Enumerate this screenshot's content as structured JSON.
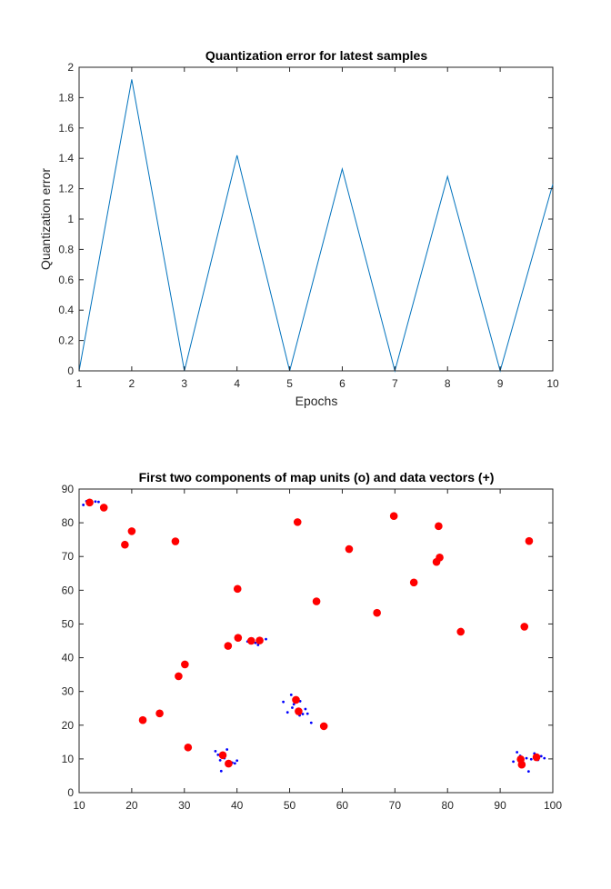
{
  "chart_data": [
    {
      "type": "line",
      "title": "Quantization error for latest samples",
      "xlabel": "Epochs",
      "ylabel": "Quantization error",
      "xlim": [
        1,
        10
      ],
      "ylim": [
        0,
        2
      ],
      "xticks": [
        1,
        2,
        3,
        4,
        5,
        6,
        7,
        8,
        9,
        10
      ],
      "yticks": [
        0,
        0.2,
        0.4,
        0.6,
        0.8,
        1,
        1.2,
        1.4,
        1.6,
        1.8,
        2
      ],
      "grid": false,
      "line_color": "#0072BD",
      "series": [
        {
          "x": [
            1,
            2,
            3,
            4,
            5,
            6,
            7,
            8,
            9,
            10
          ],
          "y": [
            0,
            1.92,
            0,
            1.42,
            0,
            1.33,
            0,
            1.28,
            0,
            1.23
          ]
        }
      ]
    },
    {
      "type": "scatter",
      "title": "First two components of map units (o) and data vectors (+)",
      "xlabel": "",
      "ylabel": "",
      "xlim": [
        10,
        100
      ],
      "ylim": [
        0,
        90
      ],
      "xticks": [
        10,
        20,
        30,
        40,
        50,
        60,
        70,
        80,
        90,
        100
      ],
      "yticks": [
        0,
        10,
        20,
        30,
        40,
        50,
        60,
        70,
        80,
        90
      ],
      "grid": false,
      "map_unit_color": "#FF0000",
      "data_vector_color": "#0000FF",
      "map_units": [
        [
          12,
          86
        ],
        [
          14.7,
          84.5
        ],
        [
          20,
          77.5
        ],
        [
          18.7,
          73.5
        ],
        [
          28.3,
          74.5
        ],
        [
          51.5,
          80.2
        ],
        [
          61.3,
          72.2
        ],
        [
          69.8,
          82
        ],
        [
          78.3,
          79
        ],
        [
          78.5,
          69.7
        ],
        [
          77.9,
          68.4
        ],
        [
          95.5,
          74.6
        ],
        [
          40.1,
          60.4
        ],
        [
          55.1,
          56.7
        ],
        [
          66.6,
          53.3
        ],
        [
          73.6,
          62.3
        ],
        [
          82.5,
          47.7
        ],
        [
          94.6,
          49.2
        ],
        [
          38.3,
          43.5
        ],
        [
          40.2,
          45.9
        ],
        [
          42.7,
          45
        ],
        [
          44.3,
          45.1
        ],
        [
          30.1,
          38
        ],
        [
          28.9,
          34.5
        ],
        [
          51.2,
          27.5
        ],
        [
          51.7,
          24.1
        ],
        [
          56.5,
          19.7
        ],
        [
          25.3,
          23.5
        ],
        [
          22.1,
          21.5
        ],
        [
          30.7,
          13.4
        ],
        [
          37.3,
          11.1
        ],
        [
          38.4,
          8.6
        ],
        [
          93.9,
          9.9
        ],
        [
          94.1,
          8.3
        ],
        [
          96.9,
          10.5
        ]
      ],
      "data_vectors": [
        [
          10.8,
          85.3
        ],
        [
          11.4,
          86.4
        ],
        [
          12.3,
          85.7
        ],
        [
          13.1,
          86.3
        ],
        [
          13.7,
          86.2
        ],
        [
          14.8,
          84
        ],
        [
          15,
          85
        ],
        [
          42,
          44.8
        ],
        [
          43.5,
          44.4
        ],
        [
          44.5,
          45.2
        ],
        [
          45.5,
          45.5
        ],
        [
          43,
          45.6
        ],
        [
          44,
          43.8
        ],
        [
          48.8,
          26.9
        ],
        [
          49.6,
          23.8
        ],
        [
          50.3,
          29
        ],
        [
          50.8,
          26.2
        ],
        [
          51.5,
          27.9
        ],
        [
          52,
          27.1
        ],
        [
          52.5,
          23.3
        ],
        [
          53,
          24.8
        ],
        [
          53.4,
          23.4
        ],
        [
          54.1,
          20.7
        ],
        [
          50.5,
          25.2
        ],
        [
          51.9,
          22.9
        ],
        [
          35.9,
          12.3
        ],
        [
          36.4,
          11.2
        ],
        [
          36.8,
          9.6
        ],
        [
          37,
          6.4
        ],
        [
          37.6,
          10.2
        ],
        [
          38.1,
          12.8
        ],
        [
          38.7,
          8.2
        ],
        [
          39.1,
          8.9
        ],
        [
          39.6,
          8.7
        ],
        [
          40,
          9.5
        ],
        [
          92.5,
          9.2
        ],
        [
          93.2,
          12
        ],
        [
          93.8,
          10.9
        ],
        [
          94.3,
          9.3
        ],
        [
          95,
          10.2
        ],
        [
          95.4,
          6.3
        ],
        [
          95.9,
          9.9
        ],
        [
          96.5,
          11.6
        ],
        [
          97.2,
          9.7
        ],
        [
          97.8,
          10.8
        ],
        [
          98.4,
          10.2
        ]
      ]
    }
  ]
}
